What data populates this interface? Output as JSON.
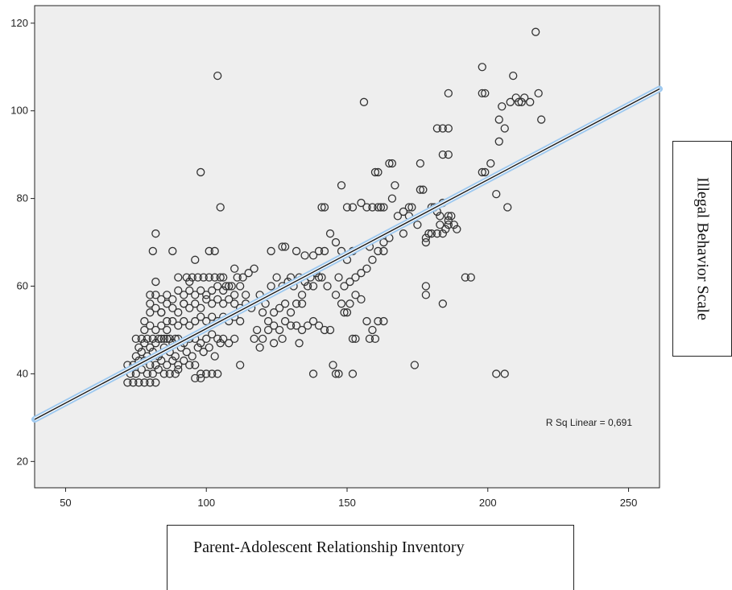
{
  "chart_data": {
    "type": "scatter",
    "xlabel": "Parent-Adolescent Relationship Inventory",
    "ylabel": "Illegal Behavior Scale",
    "xlim": [
      39,
      261
    ],
    "ylim": [
      14,
      124
    ],
    "x_ticks": [
      50,
      100,
      150,
      200,
      250
    ],
    "y_ticks": [
      20,
      40,
      60,
      80,
      100,
      120
    ],
    "grid": false,
    "annotation": "R Sq Linear = 0,691",
    "fit_line": {
      "x": [
        39,
        261
      ],
      "y": [
        29.6,
        105
      ]
    },
    "points": [
      [
        72,
        38
      ],
      [
        74,
        38
      ],
      [
        76,
        38
      ],
      [
        78,
        38
      ],
      [
        80,
        38
      ],
      [
        82,
        38
      ],
      [
        73,
        40
      ],
      [
        75,
        40
      ],
      [
        77,
        41
      ],
      [
        79,
        40
      ],
      [
        81,
        40
      ],
      [
        83,
        41
      ],
      [
        85,
        40
      ],
      [
        87,
        40
      ],
      [
        89,
        40
      ],
      [
        72,
        42
      ],
      [
        74,
        42
      ],
      [
        76,
        43
      ],
      [
        78,
        43
      ],
      [
        80,
        42
      ],
      [
        82,
        42
      ],
      [
        84,
        43
      ],
      [
        86,
        42
      ],
      [
        88,
        43
      ],
      [
        90,
        42
      ],
      [
        92,
        43
      ],
      [
        94,
        42
      ],
      [
        96,
        42
      ],
      [
        98,
        40
      ],
      [
        100,
        40
      ],
      [
        102,
        40
      ],
      [
        104,
        40
      ],
      [
        96,
        39
      ],
      [
        98,
        39
      ],
      [
        90,
        41
      ],
      [
        75,
        44
      ],
      [
        77,
        45
      ],
      [
        79,
        44
      ],
      [
        81,
        45
      ],
      [
        83,
        44
      ],
      [
        85,
        46
      ],
      [
        87,
        45
      ],
      [
        89,
        44
      ],
      [
        91,
        46
      ],
      [
        93,
        45
      ],
      [
        95,
        44
      ],
      [
        97,
        46
      ],
      [
        99,
        45
      ],
      [
        101,
        46
      ],
      [
        103,
        44
      ],
      [
        105,
        47
      ],
      [
        76,
        46
      ],
      [
        78,
        47
      ],
      [
        80,
        46
      ],
      [
        82,
        47
      ],
      [
        84,
        48
      ],
      [
        86,
        48
      ],
      [
        88,
        47
      ],
      [
        90,
        48
      ],
      [
        92,
        47
      ],
      [
        94,
        48
      ],
      [
        96,
        48
      ],
      [
        98,
        47
      ],
      [
        100,
        48
      ],
      [
        102,
        49
      ],
      [
        104,
        48
      ],
      [
        106,
        48
      ],
      [
        108,
        47
      ],
      [
        110,
        48
      ],
      [
        112,
        42
      ],
      [
        75,
        48
      ],
      [
        77,
        48
      ],
      [
        79,
        48
      ],
      [
        81,
        48
      ],
      [
        83,
        48
      ],
      [
        85,
        48
      ],
      [
        87,
        48
      ],
      [
        89,
        48
      ],
      [
        78,
        50
      ],
      [
        80,
        51
      ],
      [
        82,
        50
      ],
      [
        84,
        51
      ],
      [
        86,
        50
      ],
      [
        88,
        52
      ],
      [
        90,
        51
      ],
      [
        92,
        52
      ],
      [
        94,
        51
      ],
      [
        96,
        52
      ],
      [
        98,
        53
      ],
      [
        100,
        52
      ],
      [
        102,
        53
      ],
      [
        104,
        52
      ],
      [
        106,
        53
      ],
      [
        108,
        52
      ],
      [
        110,
        53
      ],
      [
        112,
        52
      ],
      [
        78,
        52
      ],
      [
        80,
        54
      ],
      [
        82,
        55
      ],
      [
        84,
        54
      ],
      [
        86,
        56
      ],
      [
        88,
        55
      ],
      [
        90,
        54
      ],
      [
        92,
        56
      ],
      [
        94,
        55
      ],
      [
        96,
        56
      ],
      [
        98,
        55
      ],
      [
        100,
        57
      ],
      [
        102,
        56
      ],
      [
        104,
        57
      ],
      [
        106,
        56
      ],
      [
        108,
        57
      ],
      [
        110,
        56
      ],
      [
        112,
        55
      ],
      [
        114,
        56
      ],
      [
        116,
        55
      ],
      [
        80,
        56
      ],
      [
        82,
        58
      ],
      [
        84,
        57
      ],
      [
        86,
        58
      ],
      [
        88,
        57
      ],
      [
        90,
        59
      ],
      [
        92,
        58
      ],
      [
        94,
        59
      ],
      [
        96,
        58
      ],
      [
        98,
        59
      ],
      [
        100,
        58
      ],
      [
        102,
        59
      ],
      [
        104,
        60
      ],
      [
        106,
        59
      ],
      [
        108,
        60
      ],
      [
        110,
        58
      ],
      [
        80,
        58
      ],
      [
        82,
        61
      ],
      [
        90,
        62
      ],
      [
        93,
        62
      ],
      [
        95,
        62
      ],
      [
        97,
        62
      ],
      [
        99,
        62
      ],
      [
        101,
        62
      ],
      [
        103,
        62
      ],
      [
        105,
        62
      ],
      [
        107,
        60
      ],
      [
        109,
        60
      ],
      [
        111,
        62
      ],
      [
        113,
        62
      ],
      [
        115,
        63
      ],
      [
        117,
        64
      ],
      [
        96,
        66
      ],
      [
        81,
        68
      ],
      [
        88,
        68
      ],
      [
        101,
        68
      ],
      [
        82,
        72
      ],
      [
        98,
        86
      ],
      [
        104,
        108
      ],
      [
        105,
        78
      ],
      [
        118,
        50
      ],
      [
        120,
        54
      ],
      [
        122,
        52
      ],
      [
        124,
        54
      ],
      [
        126,
        55
      ],
      [
        128,
        56
      ],
      [
        130,
        54
      ],
      [
        132,
        56
      ],
      [
        134,
        58
      ],
      [
        136,
        60
      ],
      [
        138,
        60
      ],
      [
        140,
        62
      ],
      [
        119,
        58
      ],
      [
        121,
        56
      ],
      [
        123,
        60
      ],
      [
        125,
        62
      ],
      [
        127,
        60
      ],
      [
        129,
        61
      ],
      [
        131,
        60
      ],
      [
        133,
        62
      ],
      [
        135,
        61
      ],
      [
        137,
        62
      ],
      [
        139,
        63
      ],
      [
        141,
        62
      ],
      [
        120,
        48
      ],
      [
        122,
        50
      ],
      [
        124,
        51
      ],
      [
        126,
        50
      ],
      [
        128,
        52
      ],
      [
        130,
        51
      ],
      [
        132,
        51
      ],
      [
        134,
        50
      ],
      [
        136,
        51
      ],
      [
        138,
        52
      ],
      [
        140,
        51
      ],
      [
        142,
        50
      ],
      [
        144,
        50
      ],
      [
        117,
        48
      ],
      [
        119,
        46
      ],
      [
        124,
        47
      ],
      [
        127,
        48
      ],
      [
        133,
        47
      ],
      [
        123,
        68
      ],
      [
        127,
        69
      ],
      [
        128,
        69
      ],
      [
        132,
        68
      ],
      [
        135,
        67
      ],
      [
        138,
        67
      ],
      [
        140,
        68
      ],
      [
        142,
        68
      ],
      [
        144,
        72
      ],
      [
        146,
        70
      ],
      [
        148,
        68
      ],
      [
        150,
        66
      ],
      [
        152,
        68
      ],
      [
        141,
        78
      ],
      [
        142,
        78
      ],
      [
        148,
        83
      ],
      [
        150,
        78
      ],
      [
        152,
        78
      ],
      [
        155,
        79
      ],
      [
        157,
        78
      ],
      [
        159,
        78
      ],
      [
        161,
        78
      ],
      [
        162,
        78
      ],
      [
        147,
        62
      ],
      [
        149,
        60
      ],
      [
        151,
        61
      ],
      [
        153,
        62
      ],
      [
        155,
        63
      ],
      [
        157,
        64
      ],
      [
        159,
        66
      ],
      [
        161,
        68
      ],
      [
        163,
        70
      ],
      [
        165,
        71
      ],
      [
        148,
        56
      ],
      [
        149,
        54
      ],
      [
        150,
        54
      ],
      [
        151,
        56
      ],
      [
        153,
        58
      ],
      [
        155,
        57
      ],
      [
        157,
        52
      ],
      [
        159,
        50
      ],
      [
        161,
        52
      ],
      [
        163,
        52
      ],
      [
        138,
        40
      ],
      [
        145,
        42
      ],
      [
        146,
        40
      ],
      [
        147,
        40
      ],
      [
        152,
        40
      ],
      [
        152,
        48
      ],
      [
        153,
        48
      ],
      [
        158,
        48
      ],
      [
        160,
        48
      ],
      [
        156,
        102
      ],
      [
        160,
        86
      ],
      [
        161,
        86
      ],
      [
        163,
        78
      ],
      [
        165,
        88
      ],
      [
        166,
        88
      ],
      [
        167,
        83
      ],
      [
        168,
        76
      ],
      [
        170,
        77
      ],
      [
        172,
        78
      ],
      [
        173,
        78
      ],
      [
        175,
        74
      ],
      [
        176,
        88
      ],
      [
        176,
        82
      ],
      [
        177,
        82
      ],
      [
        178,
        70
      ],
      [
        178,
        71
      ],
      [
        179,
        72
      ],
      [
        180,
        72
      ],
      [
        182,
        72
      ],
      [
        183,
        74
      ],
      [
        184,
        72
      ],
      [
        185,
        73
      ],
      [
        186,
        74
      ],
      [
        186,
        75
      ],
      [
        187,
        76
      ],
      [
        188,
        74
      ],
      [
        189,
        73
      ],
      [
        178,
        60
      ],
      [
        178,
        58
      ],
      [
        184,
        56
      ],
      [
        174,
        42
      ],
      [
        182,
        96
      ],
      [
        184,
        96
      ],
      [
        186,
        96
      ],
      [
        184,
        90
      ],
      [
        186,
        90
      ],
      [
        186,
        104
      ],
      [
        180,
        78
      ],
      [
        181,
        78
      ],
      [
        182,
        77
      ],
      [
        183,
        76
      ],
      [
        184,
        79
      ],
      [
        186,
        76
      ],
      [
        192,
        62
      ],
      [
        194,
        62
      ],
      [
        198,
        86
      ],
      [
        199,
        86
      ],
      [
        198,
        104
      ],
      [
        199,
        104
      ],
      [
        198,
        110
      ],
      [
        201,
        88
      ],
      [
        203,
        81
      ],
      [
        204,
        93
      ],
      [
        204,
        98
      ],
      [
        205,
        101
      ],
      [
        206,
        96
      ],
      [
        207,
        78
      ],
      [
        208,
        102
      ],
      [
        209,
        108
      ],
      [
        210,
        103
      ],
      [
        211,
        102
      ],
      [
        212,
        102
      ],
      [
        213,
        103
      ],
      [
        215,
        102
      ],
      [
        217,
        118
      ],
      [
        218,
        104
      ],
      [
        219,
        98
      ],
      [
        203,
        40
      ],
      [
        206,
        40
      ],
      [
        170,
        72
      ],
      [
        172,
        76
      ],
      [
        166,
        80
      ],
      [
        163,
        68
      ],
      [
        158,
        69
      ],
      [
        143,
        60
      ],
      [
        146,
        58
      ],
      [
        134,
        56
      ],
      [
        130,
        62
      ],
      [
        114,
        58
      ],
      [
        112,
        60
      ],
      [
        110,
        64
      ],
      [
        106,
        62
      ],
      [
        103,
        68
      ],
      [
        92,
        56
      ],
      [
        86,
        52
      ],
      [
        84,
        54
      ],
      [
        94,
        61
      ]
    ]
  }
}
